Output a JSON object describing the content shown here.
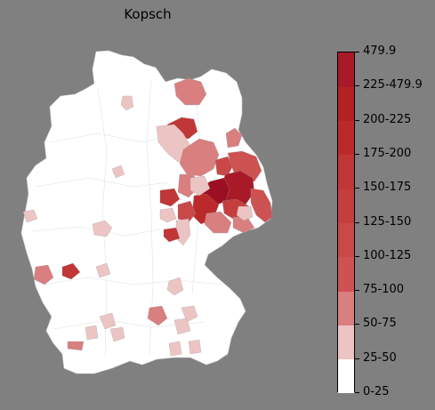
{
  "title": "Kopsch",
  "legend": {
    "labels": [
      "0-25",
      "25-50",
      "50-75",
      "75-100",
      "100-125",
      "125-150",
      "150-175",
      "175-200",
      "200-225",
      "225-479.9",
      "479.9"
    ],
    "colors": [
      "#ffffff",
      "#edc4c4",
      "#d97f7f",
      "#cd5252",
      "#c94848",
      "#c53e3e",
      "#c13636",
      "#bb2a2a",
      "#b32222",
      "#a81a28",
      "#9c0f22"
    ]
  },
  "map": {
    "region": "Germany",
    "base_color": "#ffffff",
    "border_color": "#cfcfcf"
  }
}
